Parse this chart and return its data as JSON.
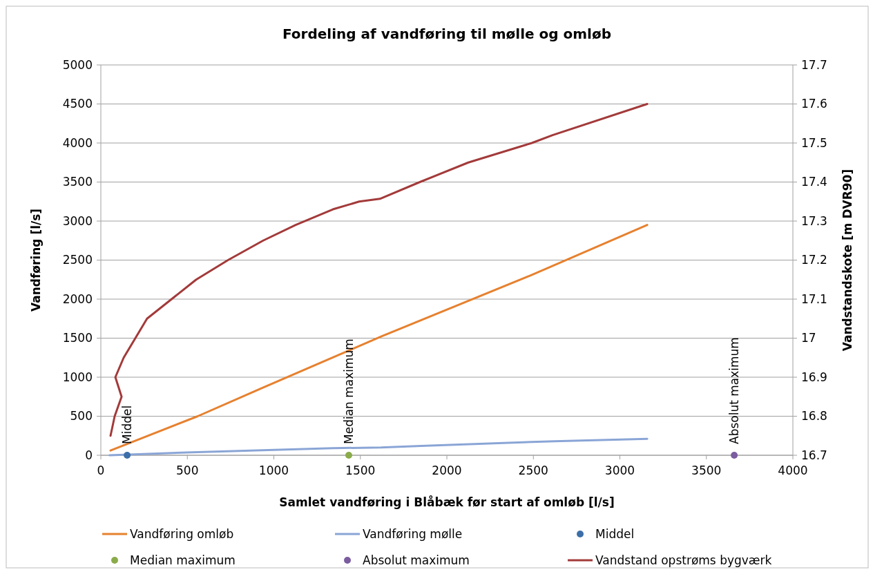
{
  "chart_data": {
    "type": "line",
    "title": "Fordeling af vandføring til mølle og omløb",
    "xlabel": "Samlet vandføring i Blåbæk før start af omløb [l/s]",
    "ylabel": "Vandføring [l/s]",
    "y2label": "Vandstandskote [m DVR90]",
    "xlim": [
      0,
      4000
    ],
    "xticks": [
      0,
      500,
      1000,
      1500,
      2000,
      2500,
      3000,
      3500,
      4000
    ],
    "ylim": [
      0,
      5000
    ],
    "yticks": [
      0,
      500,
      1000,
      1500,
      2000,
      2500,
      3000,
      3500,
      4000,
      4500,
      5000
    ],
    "y2lim": [
      16.7,
      17.7
    ],
    "y2ticks": [
      {
        "value": 16.7,
        "label": "16.7"
      },
      {
        "value": 16.8,
        "label": "16.8"
      },
      {
        "value": 16.9,
        "label": "16.9"
      },
      {
        "value": 17,
        "label": "17"
      },
      {
        "value": 17.1,
        "label": "17.1"
      },
      {
        "value": 17.2,
        "label": "17.2"
      },
      {
        "value": 17.3,
        "label": "17.3"
      },
      {
        "value": 17.4,
        "label": "17.4"
      },
      {
        "value": 17.5,
        "label": "17.5"
      },
      {
        "value": 17.6,
        "label": "17.6"
      },
      {
        "value": 17.7,
        "label": "17.7"
      }
    ],
    "grid": "y",
    "legend": "bottom",
    "series": [
      {
        "name": "Vandføring omløb",
        "color": "#e6812f",
        "x": [
          56,
          560,
          880,
          930,
          1620,
          2480,
          3158
        ],
        "values": [
          60,
          500,
          810,
          860,
          1520,
          2300,
          2950
        ]
      },
      {
        "name": "Vandføring mølle",
        "color": "#8aa5d6",
        "x": [
          50,
          560,
          1340,
          1620,
          1850,
          2620,
          3158
        ],
        "values": [
          0,
          40,
          90,
          100,
          120,
          180,
          210
        ]
      },
      {
        "name": "Middel",
        "color": "#3c6fa8",
        "type": "scatter",
        "x": [
          152
        ],
        "values": [
          0
        ]
      },
      {
        "name": "Median maximum",
        "color": "#8aab4a",
        "type": "scatter",
        "x": [
          1433
        ],
        "values": [
          0
        ]
      },
      {
        "name": "Absolut maximum",
        "color": "#7b5c9e",
        "type": "scatter",
        "x": [
          3661
        ],
        "values": [
          0
        ]
      },
      {
        "name": "Vandstand opstrøms bygværk",
        "color": "#a33a3a",
        "axis": "y2",
        "x": [
          56,
          80,
          120,
          84,
          132,
          267,
          551,
          735,
          938,
          1126,
          1341,
          1493,
          1613,
          1844,
          2124,
          2491,
          2611,
          3158
        ],
        "values": [
          16.75,
          16.8,
          16.85,
          16.9,
          16.95,
          17.05,
          17.15,
          17.2,
          17.25,
          17.29,
          17.33,
          17.35,
          17.357,
          17.4,
          17.45,
          17.5,
          17.52,
          17.6
        ]
      }
    ],
    "annotations": [
      {
        "text": "Middel",
        "x": 152,
        "y": 0
      },
      {
        "text": "Median maximum",
        "x": 1433,
        "y": 0
      },
      {
        "text": "Absolut maximum",
        "x": 3661,
        "y": 0
      }
    ]
  }
}
